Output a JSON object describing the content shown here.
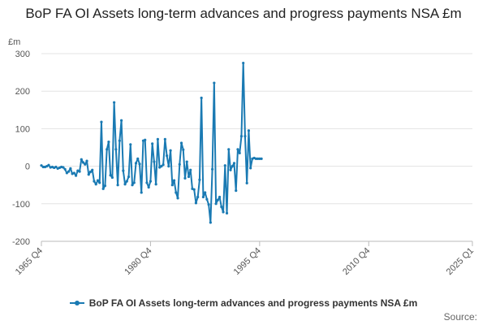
{
  "chart_data": {
    "type": "line",
    "title": "BoP FA OI Assets long-term advances and progress payments NSA £m",
    "unit_label": "£m",
    "xlabel": "",
    "ylabel": "",
    "ylim": [
      -200,
      300
    ],
    "y_ticks": [
      -200,
      -100,
      0,
      100,
      200,
      300
    ],
    "x_tick_labels": [
      "1965 Q4",
      "1980 Q4",
      "1995 Q4",
      "2010 Q4",
      "2025 Q1"
    ],
    "x_tick_positions": [
      1965.75,
      1980.75,
      1995.75,
      2010.75,
      2025.0
    ],
    "xlim": [
      1965.75,
      2025.0
    ],
    "grid": "horizontal",
    "legend_position": "bottom",
    "source_label": "Source:",
    "color": "#1a7ab3",
    "series": [
      {
        "name": "BoP FA OI Assets long-term advances and progress payments NSA £m",
        "x": [
          1965.75,
          1966.0,
          1966.25,
          1966.5,
          1966.75,
          1967.0,
          1967.25,
          1967.5,
          1967.75,
          1968.0,
          1968.25,
          1968.5,
          1968.75,
          1969.0,
          1969.25,
          1969.5,
          1969.75,
          1970.0,
          1970.25,
          1970.5,
          1970.75,
          1971.0,
          1971.25,
          1971.5,
          1971.75,
          1972.0,
          1972.25,
          1972.5,
          1972.75,
          1973.0,
          1973.25,
          1973.5,
          1973.75,
          1974.0,
          1974.25,
          1974.5,
          1974.75,
          1975.0,
          1975.25,
          1975.5,
          1975.75,
          1976.0,
          1976.25,
          1976.5,
          1976.75,
          1977.0,
          1977.25,
          1977.5,
          1977.75,
          1978.0,
          1978.25,
          1978.5,
          1978.75,
          1979.0,
          1979.25,
          1979.5,
          1979.75,
          1980.0,
          1980.25,
          1980.5,
          1980.75,
          1981.0,
          1981.25,
          1981.5,
          1981.75,
          1982.0,
          1982.25,
          1982.5,
          1982.75,
          1983.0,
          1983.25,
          1983.5,
          1983.75,
          1984.0,
          1984.25,
          1984.5,
          1984.75,
          1985.0,
          1985.25,
          1985.5,
          1985.75,
          1986.0,
          1986.25,
          1986.5,
          1986.75,
          1987.0,
          1987.25,
          1987.5,
          1987.75,
          1988.0,
          1988.25,
          1988.5,
          1988.75,
          1989.0,
          1989.25,
          1989.5,
          1989.75,
          1990.0,
          1990.25,
          1990.5,
          1990.75,
          1991.0,
          1991.25,
          1991.5,
          1991.75,
          1992.0,
          1992.25,
          1992.5,
          1992.75,
          1993.0,
          1993.25,
          1993.5,
          1993.75,
          1994.0,
          1994.25,
          1994.5,
          1994.75,
          1995.0,
          1995.25,
          1995.5,
          1995.75,
          1996.0
        ],
        "values": [
          2,
          -2,
          -2,
          0,
          3,
          -3,
          -2,
          -4,
          -2,
          -6,
          -4,
          -2,
          -3,
          -8,
          -18,
          -14,
          -6,
          -20,
          -18,
          -25,
          -12,
          -14,
          18,
          10,
          5,
          14,
          -22,
          -15,
          -10,
          -40,
          -48,
          -38,
          -44,
          118,
          -60,
          -52,
          45,
          65,
          -24,
          -30,
          170,
          45,
          -50,
          68,
          122,
          -12,
          -48,
          -40,
          -28,
          58,
          -50,
          -44,
          8,
          20,
          6,
          -70,
          68,
          70,
          -44,
          -56,
          -40,
          60,
          12,
          -48,
          72,
          -3,
          0,
          4,
          72,
          28,
          0,
          42,
          -50,
          -38,
          -70,
          -85,
          5,
          62,
          44,
          -32,
          12,
          -28,
          -10,
          -60,
          -62,
          -98,
          -82,
          -36,
          182,
          -82,
          -70,
          -88,
          -102,
          -150,
          -8,
          222,
          -100,
          -90,
          -82,
          -108,
          -122,
          2,
          -125,
          45,
          -10,
          0,
          8,
          -65,
          45,
          35,
          80,
          275,
          80,
          -45,
          95,
          -5,
          20,
          22,
          20,
          20,
          20,
          20
        ]
      }
    ]
  }
}
